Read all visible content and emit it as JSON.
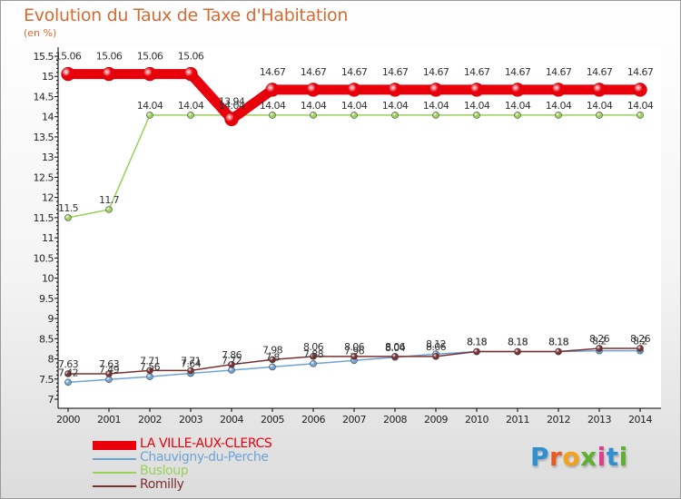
{
  "title": "Evolution du Taux de Taxe d'Habitation",
  "subtitle": "(en %)",
  "logo_text": "Proxiti",
  "chart_data": {
    "type": "line",
    "title": "Evolution du Taux de Taxe d'Habitation",
    "subtitle": "(en %)",
    "categories": [
      "2000",
      "2001",
      "2002",
      "2003",
      "2004",
      "2005",
      "2006",
      "2007",
      "2008",
      "2009",
      "2010",
      "2011",
      "2012",
      "2013",
      "2014"
    ],
    "ylim": [
      7,
      15.5
    ],
    "yticks": [
      7,
      7.5,
      8,
      8.5,
      9,
      9.5,
      10,
      10.5,
      11,
      11.5,
      12,
      12.5,
      13,
      13.5,
      14,
      14.5,
      15,
      15.5
    ],
    "grid": false,
    "legend_position": "bottom-left",
    "series": [
      {
        "name": "LA VILLE-AUX-CLERCS",
        "color": "#e8000b",
        "values": [
          15.06,
          15.06,
          15.06,
          15.06,
          13.94,
          14.67,
          14.67,
          14.67,
          14.67,
          14.67,
          14.67,
          14.67,
          14.67,
          14.67,
          14.67
        ],
        "labels": [
          "15.06",
          "15.06",
          "15.06",
          "15.06",
          "13.94",
          "14.67",
          "14.67",
          "14.67",
          "14.67",
          "14.67",
          "14.67",
          "14.67",
          "14.67",
          "14.67",
          "14.67"
        ]
      },
      {
        "name": "Chauvigny-du-Perche",
        "color": "#6ea3d6",
        "values": [
          7.42,
          7.49,
          7.56,
          7.64,
          7.72,
          7.8,
          7.88,
          7.96,
          8.04,
          8.12,
          8.18,
          8.18,
          8.18,
          8.2,
          8.2
        ],
        "labels": [
          "7.42",
          "7.49",
          "7.56",
          "7.64",
          "7.72",
          "7.8",
          "7.88",
          "7.96",
          "8.04",
          "8.12",
          "8.18",
          "8.18",
          "8.18",
          "8.2",
          "8.2"
        ]
      },
      {
        "name": "Busloup",
        "color": "#9ad15a",
        "values": [
          11.5,
          11.7,
          14.04,
          14.04,
          14.04,
          14.04,
          14.04,
          14.04,
          14.04,
          14.04,
          14.04,
          14.04,
          14.04,
          14.04,
          14.04
        ],
        "labels": [
          "11.5",
          "11.7",
          "14.04",
          "14.04",
          "14.04",
          "14.04",
          "14.04",
          "14.04",
          "14.04",
          "14.04",
          "14.04",
          "14.04",
          "14.04",
          "14.04",
          "14.04"
        ]
      },
      {
        "name": "Romilly",
        "color": "#7d2e2e",
        "values": [
          7.63,
          7.63,
          7.71,
          7.71,
          7.86,
          7.98,
          8.06,
          8.06,
          8.06,
          8.06,
          8.18,
          8.18,
          8.18,
          8.26,
          8.26
        ],
        "labels": [
          "7.63",
          "7.63",
          "7.71",
          "7.71",
          "7.86",
          "7.98",
          "8.06",
          "8.06",
          "8.06",
          "8.06",
          "8.18",
          "8.18",
          "8.18",
          "8.26",
          "8.26"
        ]
      }
    ]
  }
}
